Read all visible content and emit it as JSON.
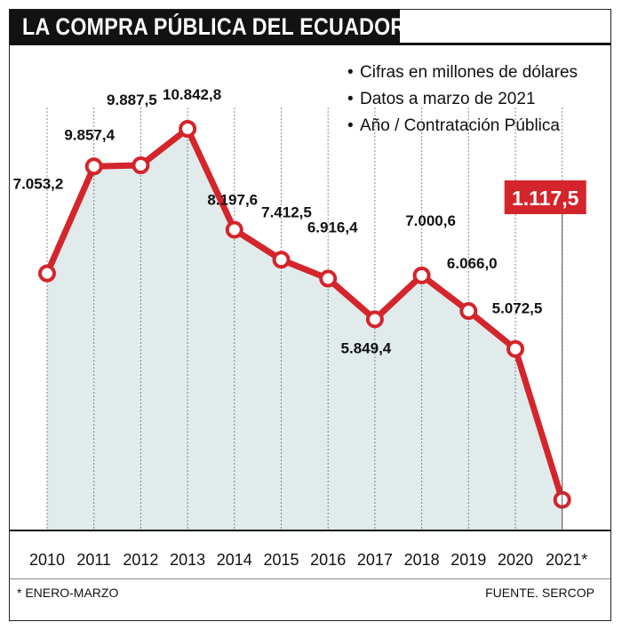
{
  "header": {
    "title": "LA COMPRA PÚBLICA DEL ECUADOR"
  },
  "notes": [
    "Cifras en millones de dólares",
    "Datos a marzo de 2021",
    "Año / Contratación Pública"
  ],
  "bullet_char": "•",
  "footer": {
    "left": "*  ENERO-MARZO",
    "right": "FUENTE. SERCOP"
  },
  "colors": {
    "line": "#d3252b",
    "highlight_bg": "#d3252b",
    "title_bg": "#121212",
    "area_fill": "#c9dadc"
  },
  "chart_data": {
    "type": "line",
    "categories": [
      "2010",
      "2011",
      "2012",
      "2013",
      "2014",
      "2015",
      "2016",
      "2017",
      "2018",
      "2019",
      "2020",
      "2021*"
    ],
    "values": [
      7053.2,
      9857.4,
      9887.5,
      10842.8,
      8197.6,
      7412.5,
      6916.4,
      5849.4,
      7000.6,
      6066.0,
      5072.5,
      1117.5
    ],
    "value_labels": [
      "7.053,2",
      "9.857,4",
      "9.887,5",
      "10.842,8",
      "8.197,6",
      "7.412,5",
      "6.916,4",
      "5.849,4",
      "7.000,6",
      "6.066,0",
      "5.072,5",
      "1.117,5"
    ],
    "highlight_index": 11,
    "title": "LA COMPRA PÚBLICA DEL ECUADOR",
    "xlabel": "",
    "ylabel": "",
    "ylim": [
      0,
      12000
    ],
    "grid": "vertical dotted guide lines at each year",
    "legend": "none"
  }
}
